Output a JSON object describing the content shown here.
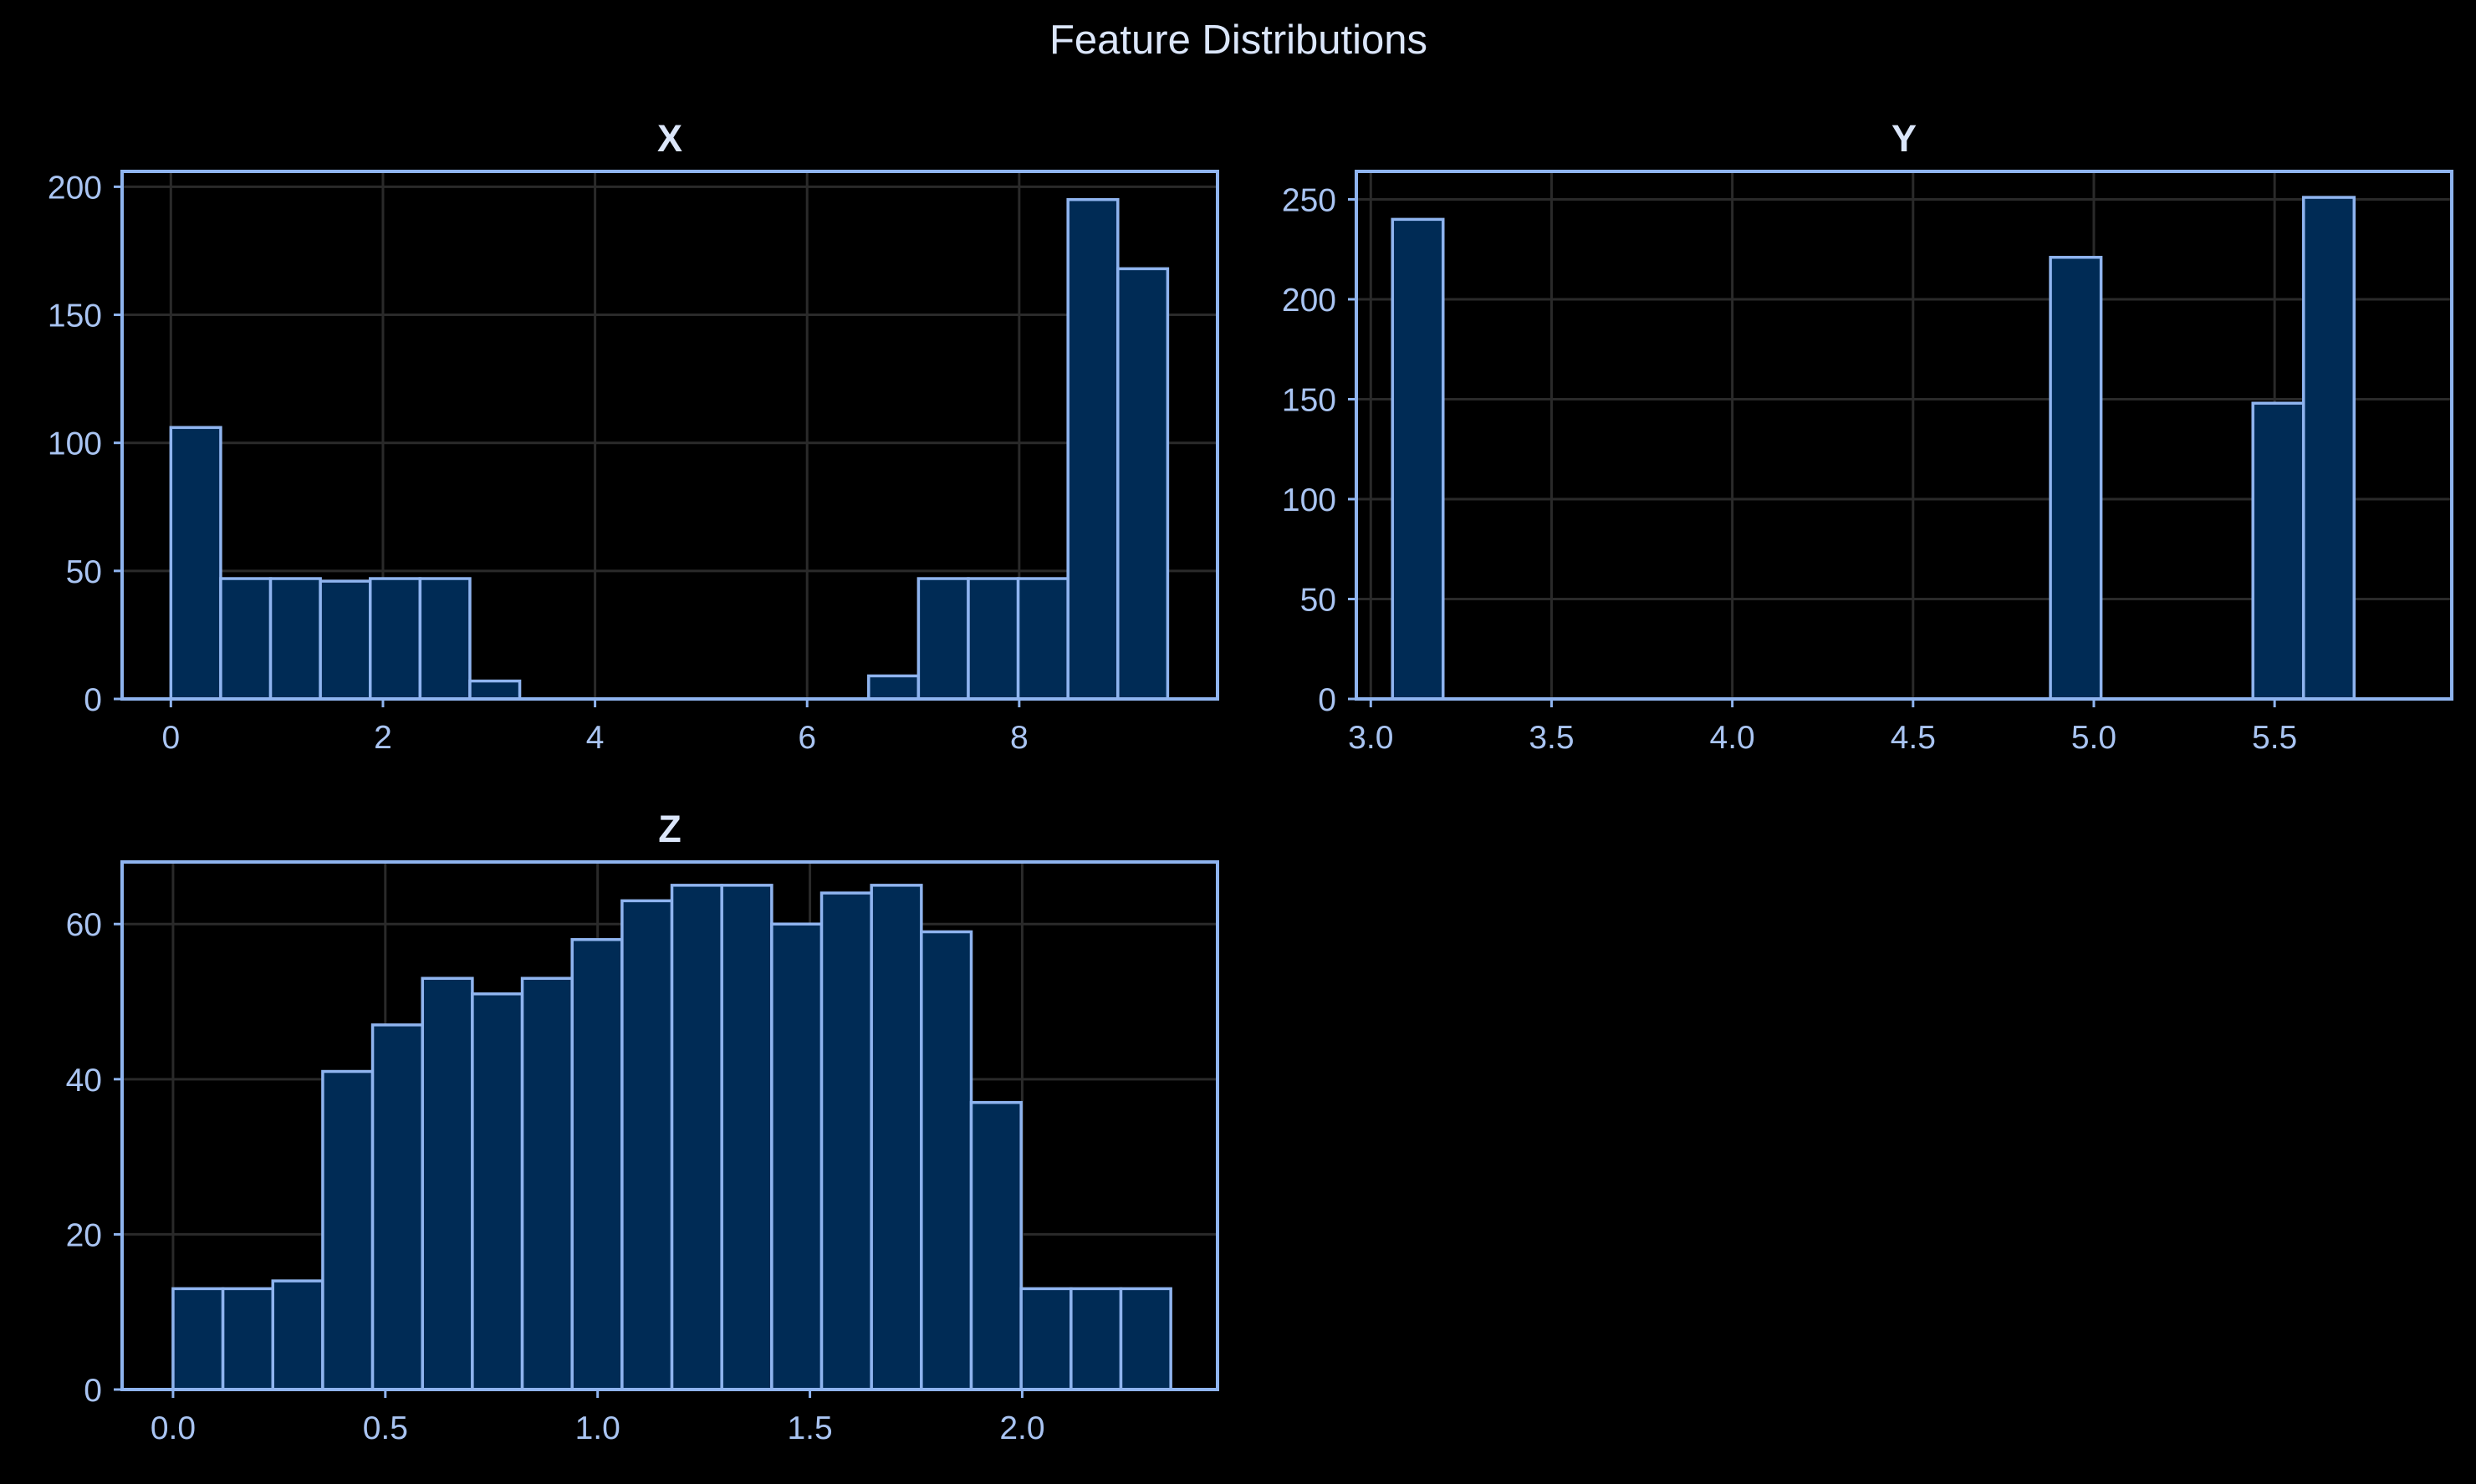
{
  "colors": {
    "background": "#000000",
    "text": "#dbe6fa",
    "tick_text": "#a9c4f2",
    "axis_frame": "#8fb4ef",
    "grid": "#2a2a2a",
    "bar_fill": "#002b55",
    "bar_edge": "#8fb4ef"
  },
  "figure": {
    "title": "Feature Distributions"
  },
  "chart_data": [
    {
      "type": "bar",
      "title": "X",
      "xlabel": "",
      "ylabel": "",
      "grid": true,
      "xlim": [
        -0.46,
        9.87
      ],
      "ylim": [
        0,
        206
      ],
      "xticks": [
        0,
        2,
        4,
        6,
        8
      ],
      "xtick_labels": [
        "0",
        "2",
        "4",
        "6",
        "8"
      ],
      "yticks": [
        0,
        50,
        100,
        150,
        200
      ],
      "ytick_labels": [
        "0",
        "50",
        "100",
        "150",
        "200"
      ],
      "bin_edges": [
        0.0,
        0.47,
        0.94,
        1.41,
        1.88,
        2.35,
        2.82,
        3.29,
        3.76,
        4.23,
        4.7,
        5.17,
        5.64,
        6.11,
        6.58,
        7.05,
        7.52,
        7.99,
        8.46,
        8.93,
        9.4
      ],
      "counts": [
        106,
        47,
        47,
        46,
        47,
        47,
        7,
        0,
        0,
        0,
        0,
        0,
        0,
        0,
        9,
        47,
        47,
        47,
        195,
        168
      ]
    },
    {
      "type": "bar",
      "title": "Y",
      "xlabel": "",
      "ylabel": "",
      "grid": true,
      "xlim": [
        2.96,
        5.99
      ],
      "ylim": [
        0,
        264
      ],
      "xticks": [
        3.0,
        3.5,
        4.0,
        4.5,
        5.0,
        5.5
      ],
      "xtick_labels": [
        "3.0",
        "3.5",
        "4.0",
        "4.5",
        "5.0",
        "5.5"
      ],
      "yticks": [
        0,
        50,
        100,
        150,
        200,
        250
      ],
      "ytick_labels": [
        "0",
        "50",
        "100",
        "150",
        "200",
        "250"
      ],
      "bin_edges": [
        3.06,
        3.2,
        3.34,
        3.48,
        3.62,
        3.76,
        3.9,
        4.04,
        4.18,
        4.32,
        4.46,
        4.6,
        4.74,
        4.88,
        5.02,
        5.16,
        5.3,
        5.44,
        5.58,
        5.72,
        5.86
      ],
      "counts": [
        240,
        0,
        0,
        0,
        0,
        0,
        0,
        0,
        0,
        0,
        0,
        0,
        0,
        221,
        0,
        0,
        0,
        148,
        251,
        0
      ]
    },
    {
      "type": "bar",
      "title": "Z",
      "xlabel": "",
      "ylabel": "",
      "grid": true,
      "xlim": [
        -0.12,
        2.46
      ],
      "ylim": [
        0,
        68
      ],
      "xticks": [
        0.0,
        0.5,
        1.0,
        1.5,
        2.0
      ],
      "xtick_labels": [
        "0.0",
        "0.5",
        "1.0",
        "1.5",
        "2.0"
      ],
      "yticks": [
        0,
        20,
        40,
        60
      ],
      "ytick_labels": [
        "0",
        "20",
        "40",
        "60"
      ],
      "bin_edges": [
        0.0,
        0.1175,
        0.235,
        0.3525,
        0.47,
        0.5875,
        0.705,
        0.8225,
        0.94,
        1.0575,
        1.175,
        1.2925,
        1.41,
        1.5275,
        1.645,
        1.7625,
        1.88,
        1.9975,
        2.115,
        2.2325,
        2.35
      ],
      "counts": [
        13,
        13,
        14,
        41,
        47,
        53,
        51,
        53,
        58,
        63,
        65,
        65,
        60,
        64,
        65,
        59,
        37,
        13,
        13,
        13
      ]
    }
  ]
}
